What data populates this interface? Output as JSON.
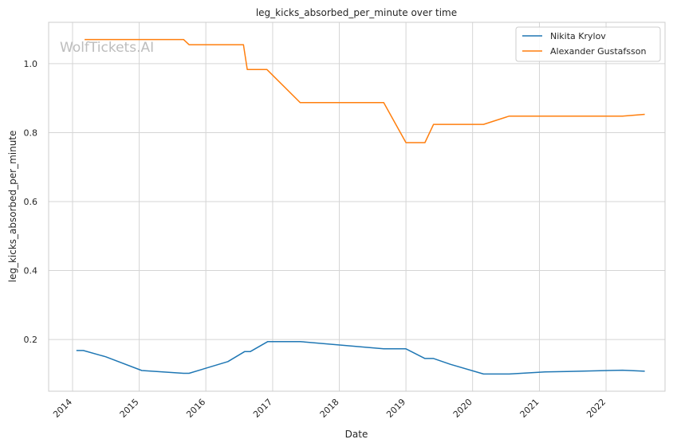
{
  "watermark": "WolfTickets.AI",
  "chart_data": {
    "type": "line",
    "title": "leg_kicks_absorbed_per_minute over time",
    "xlabel": "Date",
    "ylabel": "leg_kicks_absorbed_per_minute",
    "x_ticks": [
      "2014",
      "2015",
      "2016",
      "2017",
      "2018",
      "2019",
      "2020",
      "2021",
      "2022"
    ],
    "y_ticks": [
      "0.2",
      "0.4",
      "0.6",
      "0.8",
      "1.0"
    ],
    "xlim": [
      "2013-08-23",
      "2022-11-20"
    ],
    "ylim": [
      0.05,
      1.12
    ],
    "grid": true,
    "legend_position": "top-right",
    "series": [
      {
        "name": "Nikita Krylov",
        "color": "#1f77b4",
        "points": [
          [
            "2014-01-22",
            0.168
          ],
          [
            "2014-03-01",
            0.168
          ],
          [
            "2014-07-01",
            0.15
          ],
          [
            "2015-01-15",
            0.11
          ],
          [
            "2015-09-01",
            0.102
          ],
          [
            "2015-10-01",
            0.102
          ],
          [
            "2016-05-01",
            0.136
          ],
          [
            "2016-08-01",
            0.165
          ],
          [
            "2016-09-01",
            0.165
          ],
          [
            "2016-12-05",
            0.194
          ],
          [
            "2017-06-01",
            0.194
          ],
          [
            "2018-09-01",
            0.173
          ],
          [
            "2019-01-01",
            0.173
          ],
          [
            "2019-04-15",
            0.145
          ],
          [
            "2019-06-01",
            0.145
          ],
          [
            "2019-09-01",
            0.128
          ],
          [
            "2020-03-01",
            0.1
          ],
          [
            "2020-07-20",
            0.1
          ],
          [
            "2021-02-01",
            0.106
          ],
          [
            "2021-06-01",
            0.107
          ],
          [
            "2022-04-01",
            0.111
          ],
          [
            "2022-08-01",
            0.108
          ]
        ]
      },
      {
        "name": "Alexander Gustafsson",
        "color": "#ff7f0e",
        "points": [
          [
            "2014-03-08",
            1.07
          ],
          [
            "2015-09-01",
            1.07
          ],
          [
            "2015-10-01",
            1.055
          ],
          [
            "2016-07-25",
            1.055
          ],
          [
            "2016-08-15",
            0.983
          ],
          [
            "2016-12-01",
            0.983
          ],
          [
            "2017-06-01",
            0.887
          ],
          [
            "2018-09-01",
            0.887
          ],
          [
            "2019-01-01",
            0.771
          ],
          [
            "2019-04-15",
            0.771
          ],
          [
            "2019-06-01",
            0.824
          ],
          [
            "2020-03-01",
            0.824
          ],
          [
            "2020-07-20",
            0.848
          ],
          [
            "2022-04-01",
            0.848
          ],
          [
            "2022-08-01",
            0.853
          ]
        ]
      }
    ]
  }
}
